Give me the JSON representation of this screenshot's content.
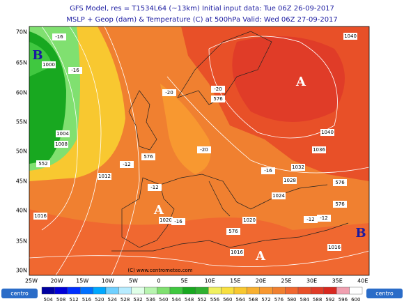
{
  "header": {
    "line1": "GFS Model, res = T1534L64 (~13km)   Initial input data: Tue 06Z 26-09-2017",
    "line2": "MSLP + Geop (dam) & Temperature (C) at 500hPa  Valid: Wed 06Z 27-09-2017"
  },
  "lat_labels": [
    "70N",
    "65N",
    "60N",
    "55N",
    "50N",
    "45N",
    "40N",
    "35N",
    "30N"
  ],
  "lon_labels": [
    "25W",
    "20W",
    "15W",
    "10W",
    "5W",
    "0",
    "5E",
    "10E",
    "15E",
    "20E",
    "25E",
    "30E",
    "35E",
    "40E"
  ],
  "map_labels": [
    "1000",
    "1004",
    "1008",
    "1012",
    "1016",
    "1016",
    "1020",
    "1020",
    "1024",
    "1028",
    "1032",
    "1036",
    "1040",
    "1040",
    "1016",
    "552",
    "576",
    "576",
    "576",
    "576",
    "576",
    "-16",
    "-16",
    "-20",
    "-20",
    "-20",
    "-12",
    "-12",
    "-16",
    "-12",
    "-12",
    "-16"
  ],
  "highs": [
    "A",
    "A",
    "A"
  ],
  "lows": [
    "B",
    "B"
  ],
  "watermark": "(C) www.centrometeo.com",
  "logo": "centro",
  "colorbar": {
    "values": [
      504,
      508,
      512,
      516,
      520,
      524,
      528,
      532,
      536,
      540,
      544,
      548,
      552,
      556,
      560,
      564,
      568,
      572,
      576,
      580,
      584,
      588,
      592,
      596,
      600
    ],
    "colors": [
      "#0000a0",
      "#0000d8",
      "#0030ff",
      "#0070ff",
      "#00a8ff",
      "#70d0ff",
      "#b8ecff",
      "#e0ffe8",
      "#b8f4b0",
      "#80e070",
      "#40c840",
      "#18a820",
      "#30b030",
      "#f0f060",
      "#f8e040",
      "#f8c830",
      "#f8b030",
      "#f89830",
      "#f08030",
      "#f06830",
      "#e85028",
      "#e03c28",
      "#d82820",
      "#f0a0b0",
      "#ffffff"
    ]
  }
}
